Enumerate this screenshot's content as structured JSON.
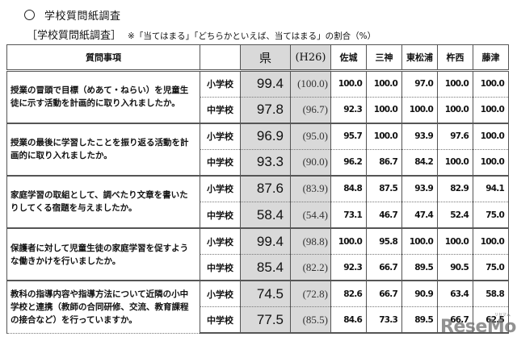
{
  "title": "学校質問紙調査",
  "subtitle": {
    "bracket": "［学校質問紙調査］",
    "note": "※「当てはまる」「どちらかといえば、当てはまる」の割合（%）"
  },
  "table": {
    "headers": {
      "question": "質問事項",
      "label": "",
      "prefecture": "県",
      "previous": "(H26)",
      "districts": [
        "佐城",
        "三神",
        "東松浦",
        "杵西",
        "藤津"
      ]
    },
    "groups": [
      {
        "question": "授業の冒頭で目標（めあて・ねらい）を児童生徒に示す活動を計画的に取り入れましたか。",
        "rows": [
          {
            "label": "小学校",
            "pref": "99.4",
            "prev": "(100.0)",
            "values": [
              "100.0",
              "100.0",
              "97.0",
              "100.0",
              "100.0"
            ]
          },
          {
            "label": "中学校",
            "pref": "97.8",
            "prev": "(96.7)",
            "values": [
              "92.3",
              "100.0",
              "100.0",
              "100.0",
              "100.0"
            ]
          }
        ]
      },
      {
        "question": "授業の最後に学習したことを振り返る活動を計画的に取り入れましたか。",
        "rows": [
          {
            "label": "小学校",
            "pref": "96.9",
            "prev": "(95.0)",
            "values": [
              "95.7",
              "100.0",
              "93.9",
              "97.6",
              "100.0"
            ]
          },
          {
            "label": "中学校",
            "pref": "93.3",
            "prev": "(90.0)",
            "values": [
              "96.2",
              "86.7",
              "84.2",
              "100.0",
              "100.0"
            ]
          }
        ]
      },
      {
        "question": "家庭学習の取組として、調べたり文章を書いたりしてくる宿題を与えましたか。",
        "rows": [
          {
            "label": "小学校",
            "pref": "87.6",
            "prev": "(83.9)",
            "values": [
              "84.8",
              "87.5",
              "93.9",
              "82.9",
              "94.1"
            ]
          },
          {
            "label": "中学校",
            "pref": "58.4",
            "prev": "(54.4)",
            "values": [
              "73.1",
              "46.7",
              "47.4",
              "52.4",
              "75.0"
            ]
          }
        ]
      },
      {
        "question": "保護者に対して児童生徒の家庭学習を促すような働きかけを行いましたか。",
        "rows": [
          {
            "label": "小学校",
            "pref": "99.4",
            "prev": "(98.8)",
            "values": [
              "100.0",
              "95.8",
              "100.0",
              "100.0",
              "100.0"
            ]
          },
          {
            "label": "中学校",
            "pref": "85.4",
            "prev": "(82.2)",
            "values": [
              "92.3",
              "66.7",
              "89.5",
              "90.5",
              "75.0"
            ]
          }
        ]
      },
      {
        "question": "教科の指導内容や指導方法について近隣の小中学校と連携（教師の合同研修、交流、教育課程の接合など）を行っていますか。",
        "rows": [
          {
            "label": "小学校",
            "pref": "74.5",
            "prev": "(72.8)",
            "values": [
              "82.6",
              "66.7",
              "90.9",
              "63.4",
              "58.8"
            ]
          },
          {
            "label": "中学校",
            "pref": "77.5",
            "prev": "(85.5)",
            "values": [
              "84.6",
              "73.3",
              "89.5",
              "66.7",
              "62.5"
            ]
          }
        ]
      }
    ]
  },
  "watermark": {
    "text": "ReseMom",
    "small": "リセマム"
  }
}
